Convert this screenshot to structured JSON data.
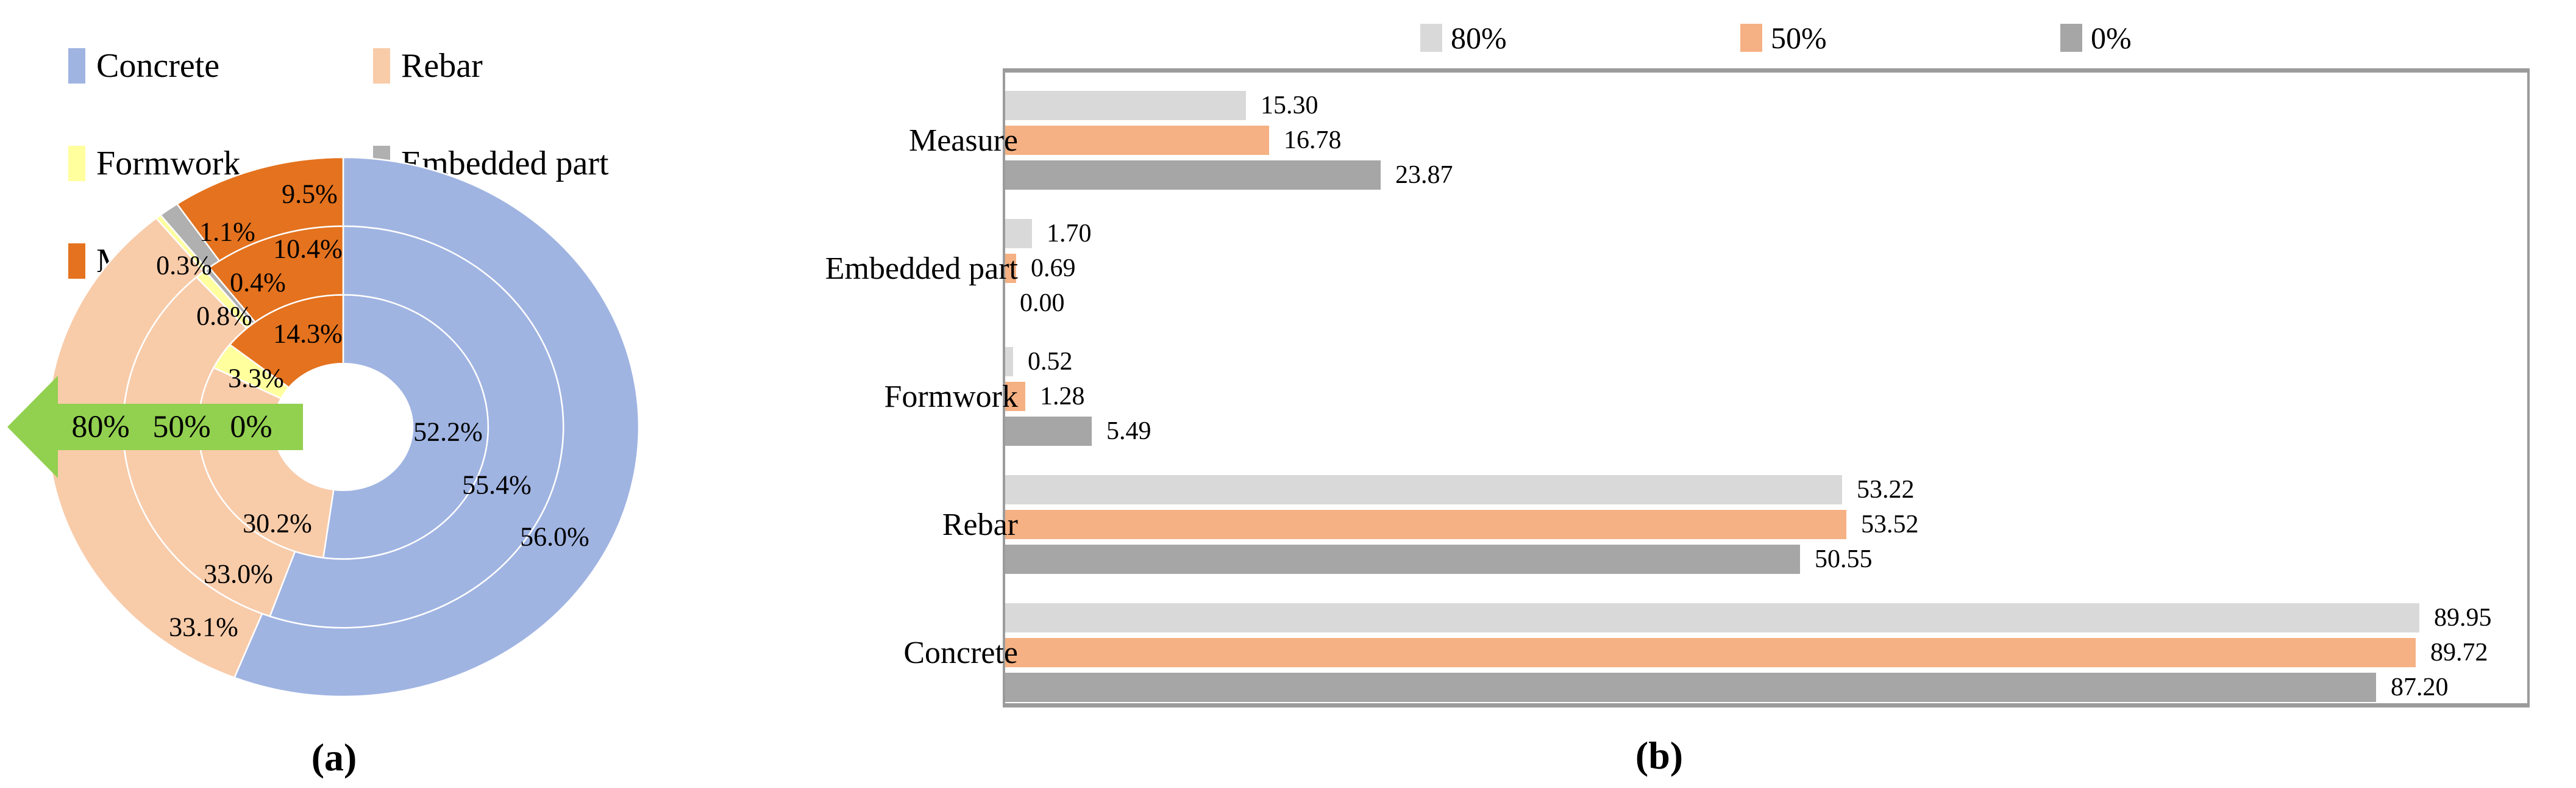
{
  "figure": {
    "caption_a": "(a)",
    "caption_b": "(b)"
  },
  "colors": {
    "concrete": "#a0b4e2",
    "rebar": "#f8cba9",
    "formwork": "#ffff9e",
    "embedded": "#b0b0b0",
    "measure": "#e4721e",
    "series_80": "#d9d9d9",
    "series_50": "#f5b183",
    "series_0": "#a6a6a6",
    "arrow_green": "#92d050",
    "box_border": "#9b9b9b",
    "separator_white": "#ffffff",
    "text": "#000000"
  },
  "chart_data": [
    {
      "id": "ring-pie",
      "type": "pie",
      "variant": "multi-ring-donut",
      "title": "",
      "categories": [
        "Concrete",
        "Rebar",
        "Formwork",
        "Embedded part",
        "Measure"
      ],
      "category_color_keys": [
        "concrete",
        "rebar",
        "formwork",
        "embedded",
        "measure"
      ],
      "rings_inner_to_outer": [
        {
          "name": "0%",
          "values": [
            52.2,
            30.2,
            3.3,
            0.0,
            14.3
          ]
        },
        {
          "name": "50%",
          "values": [
            55.4,
            33.0,
            0.8,
            0.4,
            10.4
          ]
        },
        {
          "name": "80%",
          "values": [
            56.0,
            33.1,
            0.3,
            1.1,
            9.5
          ]
        }
      ],
      "label_decimals": 1,
      "label_suffix": "%",
      "start_angle_deg": 0,
      "clockwise": true,
      "legend_columns": [
        [
          "Concrete",
          "Formwork",
          "Measure"
        ],
        [
          "Rebar",
          "Embedded part"
        ]
      ],
      "arrow_labels": [
        "80%",
        "50%",
        "0%"
      ],
      "layout_hints": {
        "cx": 563,
        "cy": 700,
        "rx": 485,
        "ry": 442,
        "ring_bounds_f": [
          0.235,
          0.49,
          0.745,
          1.0
        ],
        "label_pos": {
          "0-0": [
            735,
            708
          ],
          "0-1": [
            455,
            858
          ],
          "0-2": [
            420,
            620
          ],
          "0-4": [
            505,
            547
          ],
          "1-0": [
            815,
            795
          ],
          "1-1": [
            391,
            941
          ],
          "1-2": [
            368,
            518
          ],
          "1-3": [
            423,
            463
          ],
          "1-4": [
            505,
            408
          ],
          "2-0": [
            910,
            880
          ],
          "2-1": [
            334,
            1028
          ],
          "2-2": [
            302,
            435
          ],
          "2-3": [
            373,
            380
          ],
          "2-4": [
            508,
            318
          ]
        }
      }
    },
    {
      "id": "grouped-bars",
      "type": "bar",
      "orientation": "horizontal",
      "title": "",
      "categories": [
        "Measure",
        "Embedded part",
        "Formwork",
        "Rebar",
        "Concrete"
      ],
      "series": [
        {
          "name": "80%",
          "color_key": "series_80",
          "values": [
            15.3,
            1.7,
            0.52,
            53.22,
            89.95
          ]
        },
        {
          "name": "50%",
          "color_key": "series_50",
          "values": [
            16.78,
            0.69,
            1.28,
            53.52,
            89.72
          ]
        },
        {
          "name": "0%",
          "color_key": "series_0",
          "values": [
            23.87,
            0.0,
            5.49,
            50.55,
            87.2
          ]
        }
      ],
      "value_decimals": 2,
      "xlim": [
        0,
        96.5
      ],
      "legend_position": "top",
      "grid": false
    }
  ]
}
